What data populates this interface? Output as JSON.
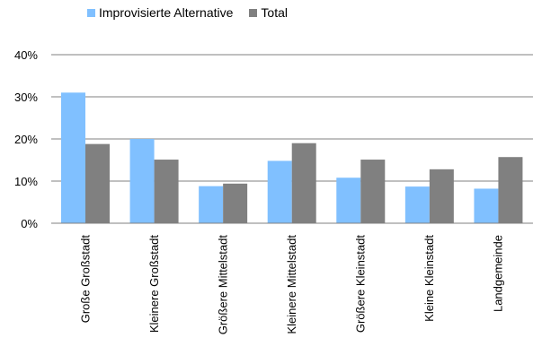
{
  "chart_data": {
    "type": "bar",
    "categories": [
      "Große Großstadt",
      "Kleinere Großstadt",
      "Größere Mittelstadt",
      "Kleinere Mittelstadt",
      "Größere Kleinstadt",
      "Kleine Kleinstadt",
      "Landgemeinde"
    ],
    "series": [
      {
        "name": "Improvisierte Alternative",
        "color": "#80c0ff",
        "values": [
          31,
          20,
          8.8,
          14.8,
          10.8,
          8.7,
          8.2
        ]
      },
      {
        "name": "Total",
        "color": "#808080",
        "values": [
          18.8,
          15.1,
          9.4,
          19.0,
          15.1,
          12.8,
          15.7
        ]
      }
    ],
    "ylim": [
      0,
      40
    ],
    "yticks": [
      0,
      10,
      20,
      30,
      40
    ],
    "ytick_labels": [
      "0%",
      "10%",
      "20%",
      "30%",
      "40%"
    ],
    "grid": true,
    "legend_position": "top"
  }
}
